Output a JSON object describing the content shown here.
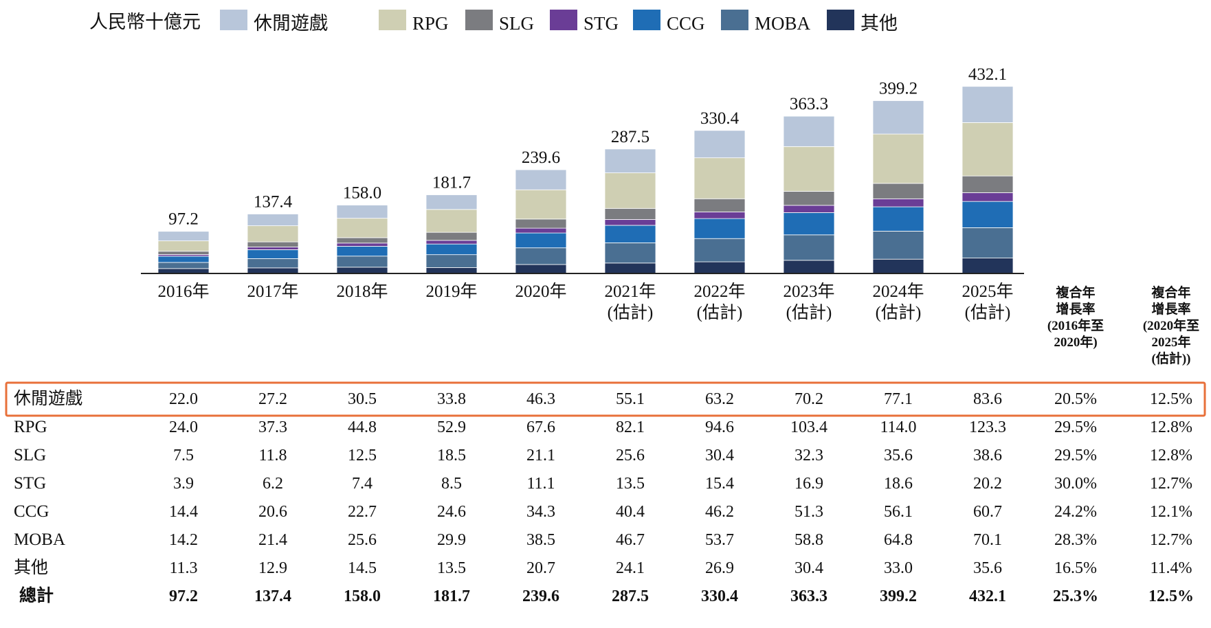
{
  "chart_data": {
    "type": "bar",
    "stacked": true,
    "unit_label": "人民幣十億元",
    "categories": [
      [
        "2016年"
      ],
      [
        "2017年"
      ],
      [
        "2018年"
      ],
      [
        "2019年"
      ],
      [
        "2020年"
      ],
      [
        "2021年",
        "(估計)"
      ],
      [
        "2022年",
        "(估計)"
      ],
      [
        "2023年",
        "(估計)"
      ],
      [
        "2024年",
        "(估計)"
      ],
      [
        "2025年",
        "(估計)"
      ]
    ],
    "series": [
      {
        "name": "其他",
        "color": "#22345a",
        "values": [
          11.3,
          12.9,
          14.5,
          13.5,
          20.7,
          24.1,
          26.9,
          30.4,
          33.0,
          35.6
        ],
        "cagr": [
          "16.5%",
          "11.4%"
        ]
      },
      {
        "name": "MOBA",
        "color": "#4a6f92",
        "values": [
          14.2,
          21.4,
          25.6,
          29.9,
          38.5,
          46.7,
          53.7,
          58.8,
          64.8,
          70.1
        ],
        "cagr": [
          "28.3%",
          "12.7%"
        ]
      },
      {
        "name": "CCG",
        "color": "#1f6db5",
        "values": [
          14.4,
          20.6,
          22.7,
          24.6,
          34.3,
          40.4,
          46.2,
          51.3,
          56.1,
          60.7
        ],
        "cagr": [
          "24.2%",
          "12.1%"
        ]
      },
      {
        "name": "STG",
        "color": "#6a3d96",
        "values": [
          3.9,
          6.2,
          7.4,
          8.5,
          11.1,
          13.5,
          15.4,
          16.9,
          18.6,
          20.2
        ],
        "cagr": [
          "30.0%",
          "12.7%"
        ]
      },
      {
        "name": "SLG",
        "color": "#7b7c80",
        "values": [
          7.5,
          11.8,
          12.5,
          18.5,
          21.1,
          25.6,
          30.4,
          32.3,
          35.6,
          38.6
        ],
        "cagr": [
          "29.5%",
          "12.8%"
        ]
      },
      {
        "name": "RPG",
        "color": "#cfcfb3",
        "values": [
          24.0,
          37.3,
          44.8,
          52.9,
          67.6,
          82.1,
          94.6,
          103.4,
          114.0,
          123.3
        ],
        "cagr": [
          "29.5%",
          "12.8%"
        ]
      },
      {
        "name": "休閒遊戲",
        "color": "#b8c6da",
        "values": [
          22.0,
          27.2,
          30.5,
          33.8,
          46.3,
          55.1,
          63.2,
          70.2,
          77.1,
          83.6
        ],
        "cagr": [
          "20.5%",
          "12.5%"
        ]
      }
    ],
    "legend_order": [
      "休閒遊戲",
      "RPG",
      "SLG",
      "STG",
      "CCG",
      "MOBA",
      "其他"
    ],
    "table_order": [
      "休閒遊戲",
      "RPG",
      "SLG",
      "STG",
      "CCG",
      "MOBA",
      "其他"
    ],
    "totals": {
      "name": "總計",
      "values": [
        "97.2",
        "137.4",
        "158.0",
        "181.7",
        "239.6",
        "287.5",
        "330.4",
        "363.3",
        "399.2",
        "432.1"
      ],
      "cagr": [
        "25.3%",
        "12.5%"
      ]
    },
    "cagr_headers": [
      [
        "複合年",
        "增長率",
        "(2016年至",
        "2020年)"
      ],
      [
        "複合年",
        "增長率",
        "(2020年至",
        "2025年",
        "(估計))"
      ]
    ],
    "highlighted_row": "休閒遊戲",
    "legend_placement": "top",
    "grid": false
  }
}
